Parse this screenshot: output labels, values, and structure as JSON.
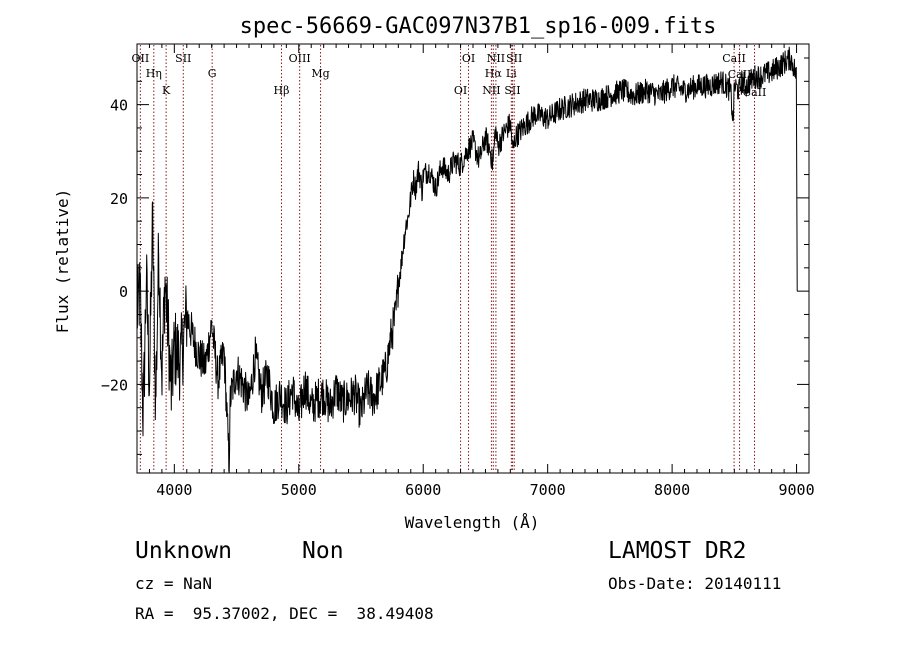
{
  "chart_data": {
    "type": "line",
    "title": "spec-56669-GAC097N37B1_sp16-009.fits",
    "xlabel": "Wavelength (Å)",
    "ylabel": "Flux (relative)",
    "xlim": [
      3700,
      9100
    ],
    "ylim": [
      -39,
      53
    ],
    "x_ticks": [
      {
        "value": 4000,
        "label": "4000"
      },
      {
        "value": 5000,
        "label": "5000"
      },
      {
        "value": 6000,
        "label": "6000"
      },
      {
        "value": 7000,
        "label": "7000"
      },
      {
        "value": 8000,
        "label": "8000"
      },
      {
        "value": 9000,
        "label": "9000"
      }
    ],
    "y_ticks": [
      {
        "value": -20,
        "label": "−20"
      },
      {
        "value": 0,
        "label": "0"
      },
      {
        "value": 20,
        "label": "20"
      },
      {
        "value": 40,
        "label": "40"
      }
    ],
    "grid": false,
    "legend": "none",
    "line_color": "#000000",
    "marker_color": "#8b1a1a",
    "series": [
      {
        "x": [
          3700,
          3725,
          3750,
          3775,
          3800,
          3825,
          3850,
          3875,
          3900,
          3925,
          3950,
          3975,
          4000,
          4050,
          4100,
          4150,
          4200,
          4250,
          4300,
          4350,
          4400,
          4440,
          4450,
          4500,
          4550,
          4600,
          4650,
          4700,
          4750,
          4800,
          4850,
          4900,
          4950,
          5000,
          5050,
          5100,
          5150,
          5200,
          5250,
          5300,
          5350,
          5400,
          5450,
          5500,
          5550,
          5600,
          5650,
          5700,
          5740,
          5780,
          5800,
          5820,
          5840,
          5860,
          5880,
          5900,
          5920,
          5940,
          5960,
          5980,
          5990,
          6000,
          6050,
          6100,
          6150,
          6200,
          6250,
          6300,
          6350,
          6400,
          6450,
          6500,
          6540,
          6560,
          6580,
          6600,
          6650,
          6700,
          6720,
          6740,
          6800,
          6900,
          7000,
          7100,
          7200,
          7300,
          7400,
          7500,
          7600,
          7700,
          7800,
          7900,
          8000,
          8100,
          8200,
          8300,
          8400,
          8470,
          8490,
          8500,
          8540,
          8560,
          8600,
          8660,
          8700,
          8800,
          8850,
          8900,
          8950,
          8980,
          9000,
          9005
        ],
        "y": [
          -5,
          0,
          -28,
          3,
          -20,
          15,
          -25,
          10,
          -18,
          2,
          -8,
          -22,
          -12,
          -15,
          -5,
          -10,
          -14,
          -16,
          -7,
          -19,
          -13,
          -37,
          -23,
          -17,
          -20,
          -24,
          -14,
          -22,
          -18,
          -25,
          -22,
          -25,
          -21,
          -27,
          -20,
          -25,
          -23,
          -22,
          -25,
          -21,
          -24,
          -23,
          -22,
          -26,
          -21,
          -23,
          -20,
          -17,
          -10,
          -5,
          2,
          5,
          10,
          14,
          16,
          20,
          24,
          22,
          26,
          24,
          21,
          25,
          26,
          22,
          27,
          25,
          28,
          27,
          30,
          32,
          28,
          33,
          30,
          27,
          35,
          31,
          34,
          36,
          30,
          33,
          35,
          38,
          37,
          39,
          40,
          41,
          41,
          42,
          43,
          42,
          43,
          42,
          44,
          43,
          44,
          44,
          45,
          43,
          36,
          44,
          43,
          45,
          44,
          46,
          46,
          47,
          48,
          49,
          50,
          48,
          46,
          0
        ]
      }
    ],
    "markers": {
      "emission": [
        {
          "label": "OII",
          "x": 3727
        },
        {
          "label": "Hη",
          "x": 3835
        },
        {
          "label": "K",
          "x": 3934
        },
        {
          "label": "SII",
          "x": 4072
        },
        {
          "label": "G",
          "x": 4304
        },
        {
          "label": "Hβ",
          "x": 4861
        },
        {
          "label": "OIII",
          "x": 5007
        },
        {
          "label": "Mg",
          "x": 5175
        },
        {
          "label": "OI",
          "x": 6300
        },
        {
          "label": "OI",
          "x": 6364
        },
        {
          "label": "Hα",
          "x": 6563
        },
        {
          "label": "NII",
          "x": 6548
        },
        {
          "label": "NII",
          "x": 6584
        },
        {
          "label": "Li",
          "x": 6708
        },
        {
          "label": "SII",
          "x": 6717
        },
        {
          "label": "SII",
          "x": 6731
        }
      ],
      "absorption": [
        {
          "label": "CaII",
          "x": 8498
        },
        {
          "label": "CaII",
          "x": 8542
        },
        {
          "label": "CaII",
          "x": 8662
        }
      ]
    }
  },
  "info": {
    "class": "Unknown",
    "subclass": "Non",
    "survey": "LAMOST DR2",
    "cz": "cz = NaN",
    "obs_date": "Obs-Date: 20140111",
    "coords": "RA =  95.37002, DEC =  38.49408"
  }
}
